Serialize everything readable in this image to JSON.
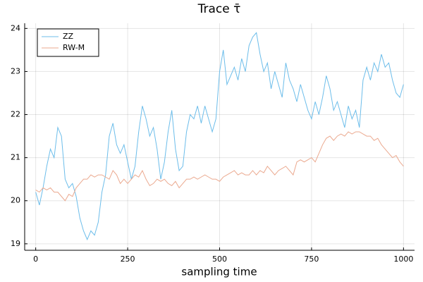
{
  "chart_data": {
    "type": "line",
    "title": "Trace τ̄",
    "xlabel": "sampling time",
    "x": [
      0,
      10,
      20,
      30,
      40,
      50,
      60,
      70,
      80,
      90,
      100,
      110,
      120,
      130,
      140,
      150,
      160,
      170,
      180,
      190,
      200,
      210,
      220,
      230,
      240,
      250,
      260,
      270,
      280,
      290,
      300,
      310,
      320,
      330,
      340,
      350,
      360,
      370,
      380,
      390,
      400,
      410,
      420,
      430,
      440,
      450,
      460,
      470,
      480,
      490,
      500,
      510,
      520,
      530,
      540,
      550,
      560,
      570,
      580,
      590,
      600,
      610,
      620,
      630,
      640,
      650,
      660,
      670,
      680,
      690,
      700,
      710,
      720,
      730,
      740,
      750,
      760,
      770,
      780,
      790,
      800,
      810,
      820,
      830,
      840,
      850,
      860,
      870,
      880,
      890,
      900,
      910,
      920,
      930,
      940,
      950,
      960,
      970,
      980,
      990,
      1000
    ],
    "series": [
      {
        "name": "ZZ",
        "color": "#6cbdea",
        "values": [
          20.2,
          19.9,
          20.3,
          20.8,
          21.2,
          21.0,
          21.7,
          21.5,
          20.5,
          20.3,
          20.4,
          20.1,
          19.6,
          19.3,
          19.1,
          19.3,
          19.2,
          19.5,
          20.2,
          20.6,
          21.5,
          21.8,
          21.3,
          21.1,
          21.3,
          20.9,
          20.5,
          20.8,
          21.6,
          22.2,
          21.9,
          21.5,
          21.7,
          21.2,
          20.5,
          20.9,
          21.6,
          22.1,
          21.2,
          20.7,
          20.8,
          21.6,
          22.0,
          21.9,
          22.2,
          21.8,
          22.2,
          21.9,
          21.6,
          21.9,
          23.0,
          23.5,
          22.7,
          22.9,
          23.1,
          22.8,
          23.3,
          23.0,
          23.6,
          23.8,
          23.9,
          23.4,
          23.0,
          23.2,
          22.6,
          23.0,
          22.7,
          22.4,
          23.2,
          22.8,
          22.6,
          22.3,
          22.7,
          22.4,
          22.1,
          21.9,
          22.3,
          22.0,
          22.4,
          22.9,
          22.6,
          22.1,
          22.3,
          22.0,
          21.7,
          22.2,
          21.9,
          22.1,
          21.7,
          22.8,
          23.1,
          22.8,
          23.2,
          23.0,
          23.4,
          23.1,
          23.2,
          22.8,
          22.5,
          22.4,
          22.7
        ]
      },
      {
        "name": "RW-M",
        "color": "#eba98f",
        "values": [
          20.25,
          20.2,
          20.3,
          20.25,
          20.3,
          20.2,
          20.2,
          20.1,
          20.0,
          20.15,
          20.1,
          20.3,
          20.4,
          20.5,
          20.5,
          20.6,
          20.55,
          20.6,
          20.6,
          20.55,
          20.5,
          20.7,
          20.6,
          20.4,
          20.5,
          20.4,
          20.5,
          20.6,
          20.55,
          20.7,
          20.5,
          20.35,
          20.4,
          20.5,
          20.45,
          20.5,
          20.4,
          20.35,
          20.45,
          20.3,
          20.4,
          20.5,
          20.5,
          20.55,
          20.5,
          20.55,
          20.6,
          20.55,
          20.5,
          20.5,
          20.45,
          20.55,
          20.6,
          20.65,
          20.7,
          20.6,
          20.65,
          20.6,
          20.6,
          20.7,
          20.6,
          20.7,
          20.65,
          20.8,
          20.7,
          20.6,
          20.7,
          20.75,
          20.8,
          20.7,
          20.6,
          20.9,
          20.95,
          20.9,
          20.95,
          21.0,
          20.9,
          21.1,
          21.3,
          21.45,
          21.5,
          21.4,
          21.5,
          21.55,
          21.5,
          21.6,
          21.55,
          21.6,
          21.6,
          21.55,
          21.5,
          21.5,
          21.4,
          21.45,
          21.3,
          21.2,
          21.1,
          21.0,
          21.05,
          20.9,
          20.8
        ]
      }
    ],
    "xlim": [
      -30,
      1030
    ],
    "ylim": [
      18.85,
      24.12
    ],
    "xticks": [
      0,
      250,
      500,
      750,
      1000
    ],
    "yticks": [
      19,
      20,
      21,
      22,
      23,
      24
    ],
    "grid": true,
    "legend": "top-left"
  }
}
